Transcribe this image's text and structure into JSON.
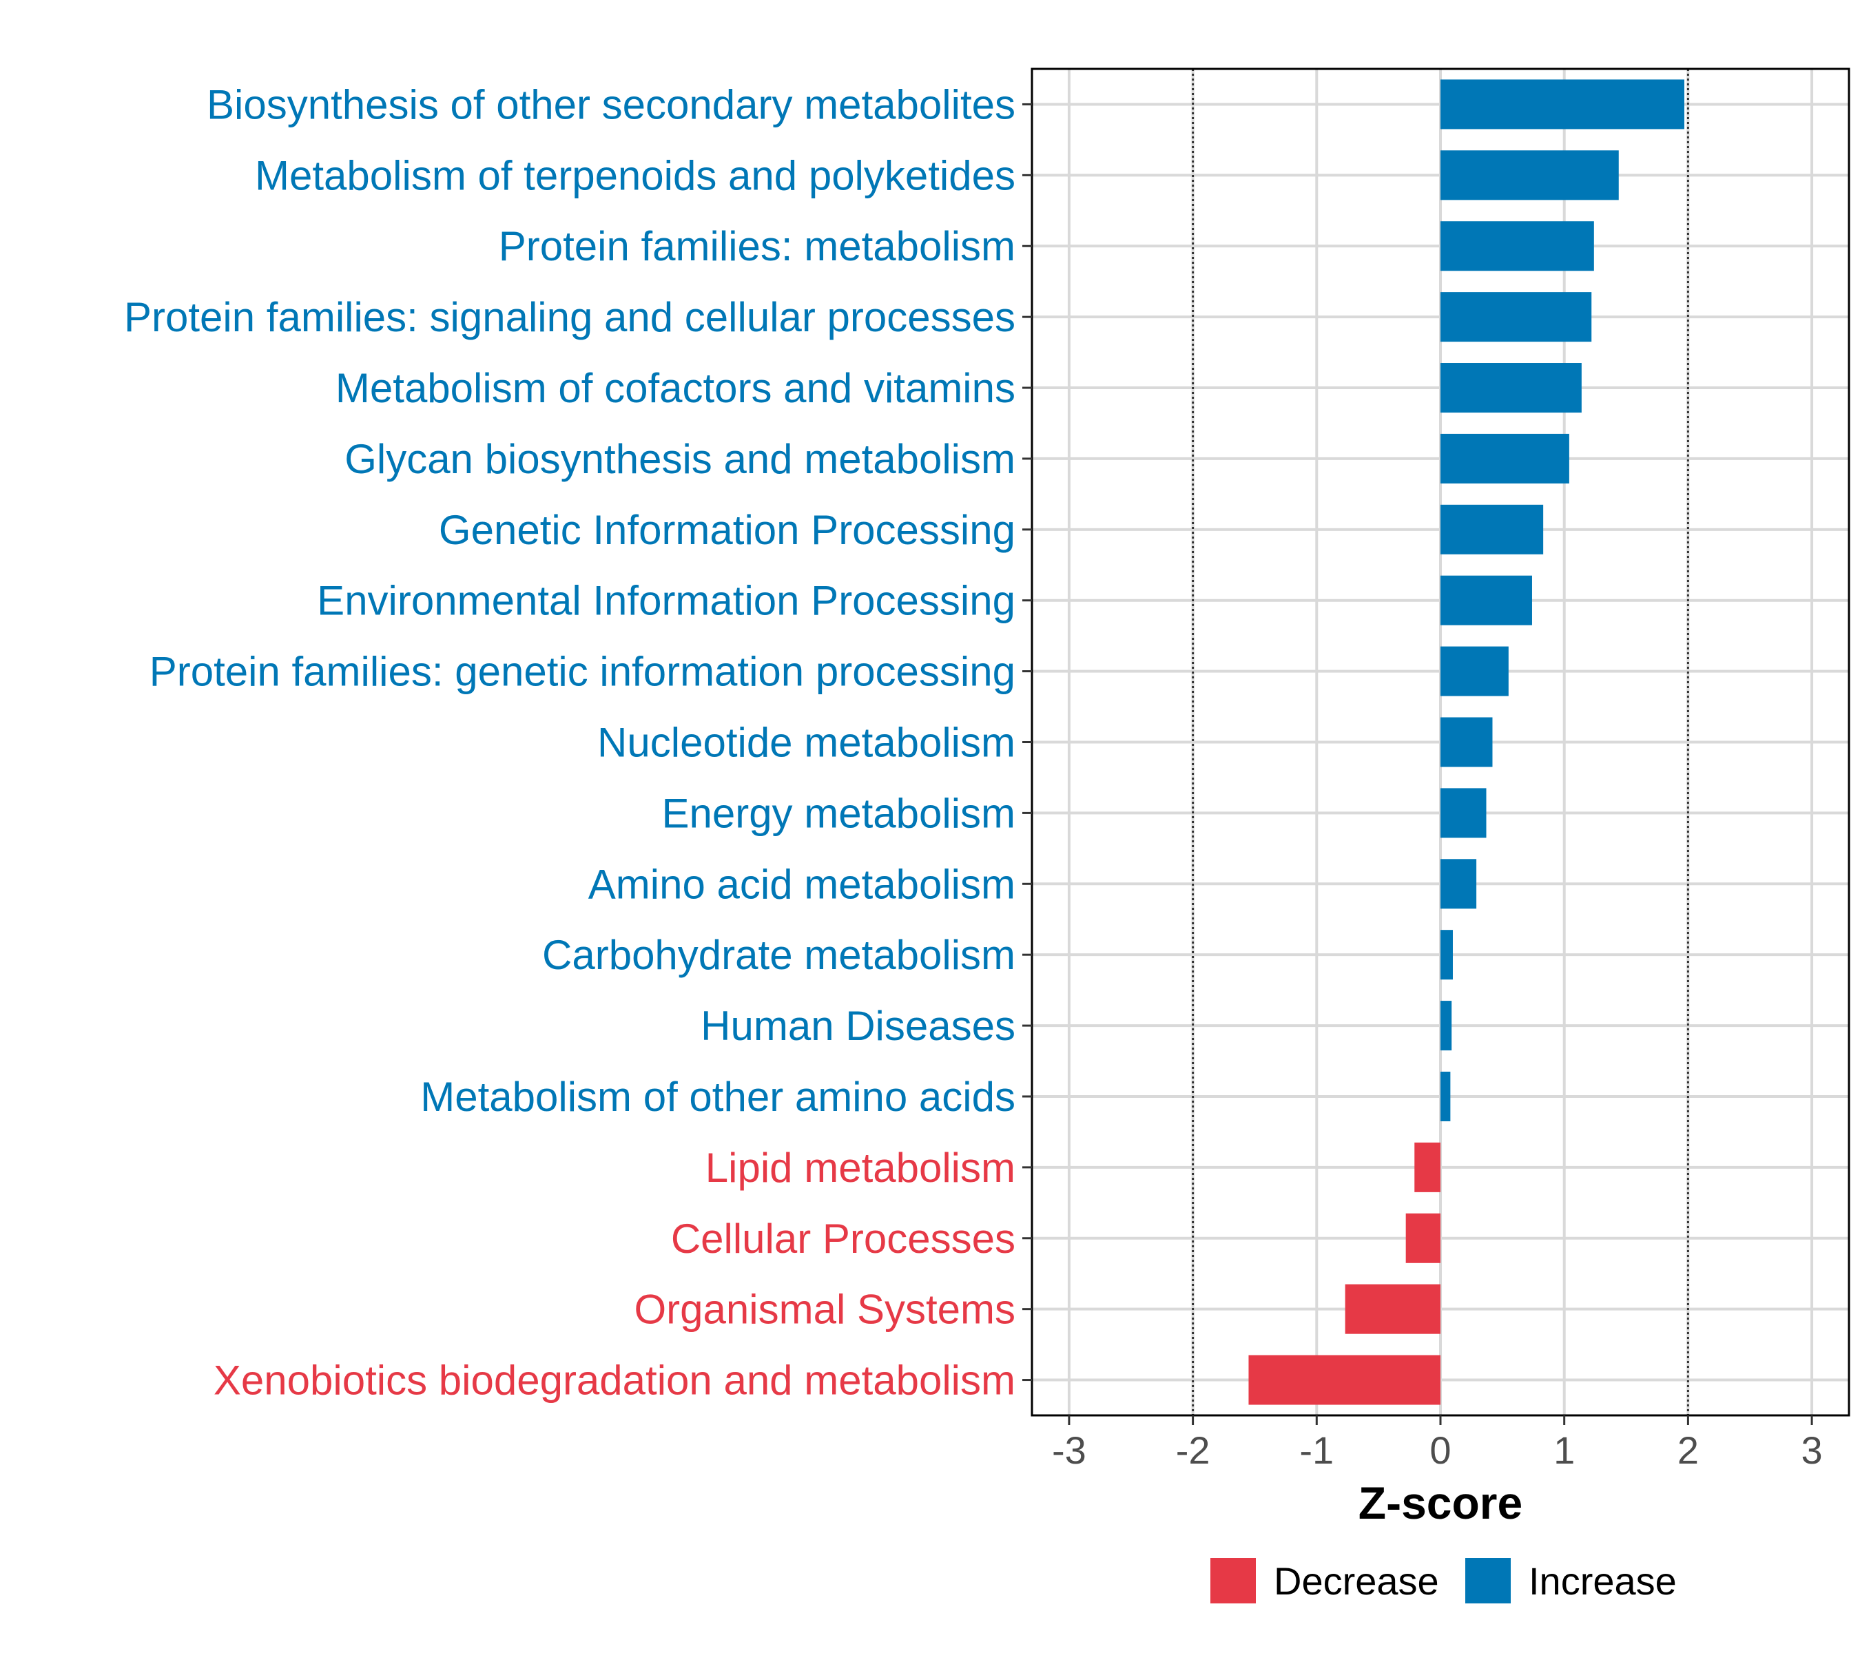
{
  "chart_data": {
    "type": "bar",
    "orientation": "horizontal",
    "title": "",
    "xlabel": "Z-score",
    "ylabel": "",
    "xlim": [
      -3.3,
      3.3
    ],
    "xticks": [
      -3,
      -2,
      -1,
      0,
      1,
      2,
      3
    ],
    "xtick_labels": [
      "-3",
      "-2",
      "-1",
      "0",
      "1",
      "2",
      "3"
    ],
    "reference_lines": [
      -2,
      2
    ],
    "grid": true,
    "legend_position": "bottom",
    "categories": [
      "Biosynthesis of other secondary metabolites",
      "Metabolism of terpenoids and polyketides",
      "Protein families: metabolism",
      "Protein families: signaling and cellular processes",
      "Metabolism of cofactors and vitamins",
      "Glycan biosynthesis and metabolism",
      "Genetic Information Processing",
      "Environmental Information Processing",
      "Protein families: genetic information processing",
      "Nucleotide metabolism",
      "Energy metabolism",
      "Amino acid metabolism",
      "Carbohydrate metabolism",
      "Human Diseases",
      "Metabolism of other amino acids",
      "Lipid metabolism",
      "Cellular Processes",
      "Organismal Systems",
      "Xenobiotics biodegradation and metabolism"
    ],
    "values": [
      1.97,
      1.44,
      1.24,
      1.22,
      1.14,
      1.04,
      0.83,
      0.74,
      0.55,
      0.42,
      0.37,
      0.29,
      0.1,
      0.09,
      0.08,
      -0.21,
      -0.28,
      -0.77,
      -1.55
    ],
    "groups": [
      "Increase",
      "Increase",
      "Increase",
      "Increase",
      "Increase",
      "Increase",
      "Increase",
      "Increase",
      "Increase",
      "Increase",
      "Increase",
      "Increase",
      "Increase",
      "Increase",
      "Increase",
      "Decrease",
      "Decrease",
      "Decrease",
      "Decrease"
    ],
    "legend": [
      {
        "name": "Decrease",
        "color": "#E63946"
      },
      {
        "name": "Increase",
        "color": "#0077B6"
      }
    ],
    "colors": {
      "Decrease": "#E63946",
      "Increase": "#0077B6"
    }
  }
}
